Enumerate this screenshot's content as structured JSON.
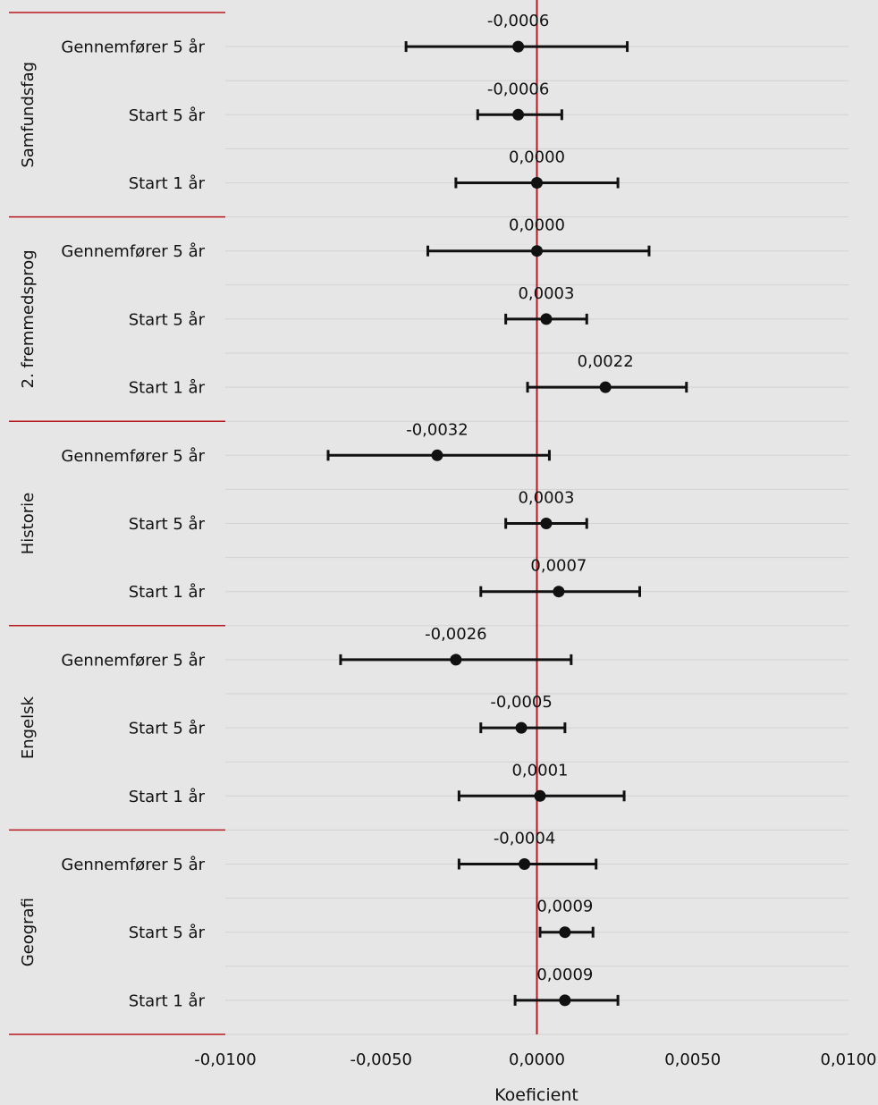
{
  "chart_data": {
    "type": "scatter",
    "subtype": "coefficient-plot-with-error-bars",
    "orientation": "horizontal",
    "xlabel": "Koeficient",
    "xlim": [
      -0.01,
      0.01
    ],
    "x_ticks": [
      -0.01,
      -0.005,
      0,
      0.005,
      0.01
    ],
    "x_tick_labels": [
      "-0,0100",
      "-0,0050",
      "0,0000",
      "0,0050",
      "0,0100"
    ],
    "reference_line_x": 0,
    "colors": {
      "background": "#e6e6e6",
      "grid": "#d2d2d2",
      "reference": "#b5181f",
      "separator": "#b5181f",
      "marker": "#111111"
    },
    "groups": [
      {
        "name": "Samfundsfag",
        "rows": [
          {
            "label": "Gennemfører 5 år",
            "value": -0.0006,
            "value_label": "-0,0006",
            "ci": [
              -0.0042,
              0.0029
            ]
          },
          {
            "label": "Start 5 år",
            "value": -0.0006,
            "value_label": "-0,0006",
            "ci": [
              -0.0019,
              0.0008
            ]
          },
          {
            "label": "Start 1 år",
            "value": 0.0,
            "value_label": "0,0000",
            "ci": [
              -0.0026,
              0.0026
            ]
          }
        ]
      },
      {
        "name": "2. fremmedsprog",
        "rows": [
          {
            "label": "Gennemfører 5 år",
            "value": 0.0,
            "value_label": "0,0000",
            "ci": [
              -0.0035,
              0.0036
            ]
          },
          {
            "label": "Start 5 år",
            "value": 0.0003,
            "value_label": "0,0003",
            "ci": [
              -0.001,
              0.0016
            ]
          },
          {
            "label": "Start 1 år",
            "value": 0.0022,
            "value_label": "0,0022",
            "ci": [
              -0.0003,
              0.0048
            ]
          }
        ]
      },
      {
        "name": "Historie",
        "rows": [
          {
            "label": "Gennemfører 5 år",
            "value": -0.0032,
            "value_label": "-0,0032",
            "ci": [
              -0.0067,
              0.0004
            ]
          },
          {
            "label": "Start 5 år",
            "value": 0.0003,
            "value_label": "0,0003",
            "ci": [
              -0.001,
              0.0016
            ]
          },
          {
            "label": "Start 1 år",
            "value": 0.0007,
            "value_label": "0,0007",
            "ci": [
              -0.0018,
              0.0033
            ]
          }
        ]
      },
      {
        "name": "Engelsk",
        "rows": [
          {
            "label": "Gennemfører 5 år",
            "value": -0.0026,
            "value_label": "-0,0026",
            "ci": [
              -0.0063,
              0.0011
            ]
          },
          {
            "label": "Start 5 år",
            "value": -0.0005,
            "value_label": "-0,0005",
            "ci": [
              -0.0018,
              0.0009
            ]
          },
          {
            "label": "Start 1 år",
            "value": 0.0001,
            "value_label": "0,0001",
            "ci": [
              -0.0025,
              0.0028
            ]
          }
        ]
      },
      {
        "name": "Geografi",
        "rows": [
          {
            "label": "Gennemfører 5 år",
            "value": -0.0004,
            "value_label": "-0,0004",
            "ci": [
              -0.0025,
              0.0019
            ]
          },
          {
            "label": "Start 5 år",
            "value": 0.0009,
            "value_label": "0,0009",
            "ci": [
              0.0001,
              0.0018
            ]
          },
          {
            "label": "Start 1 år",
            "value": 0.0009,
            "value_label": "0,0009",
            "ci": [
              -0.0007,
              0.0026
            ]
          }
        ]
      }
    ]
  }
}
